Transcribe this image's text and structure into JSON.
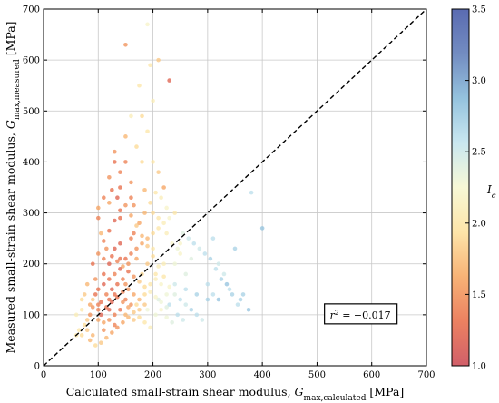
{
  "chart_data": {
    "type": "scatter",
    "xlabel_main": "Calculated small-strain shear modulus, ",
    "xlabel_symbol": "G",
    "xlabel_sub": "max,calculated",
    "xlabel_unit": " [MPa]",
    "ylabel_main": "Measured small-strain shear modulus, ",
    "ylabel_symbol": "G",
    "ylabel_sub": "max,measured",
    "ylabel_unit": " [MPa]",
    "xlim": [
      0,
      700
    ],
    "ylim": [
      0,
      700
    ],
    "xticks": [
      "0",
      "100",
      "200",
      "300",
      "400",
      "500",
      "600",
      "700"
    ],
    "yticks": [
      "0",
      "100",
      "200",
      "300",
      "400",
      "500",
      "600",
      "700"
    ],
    "grid": true,
    "reference_line": {
      "type": "1:1",
      "style": "dashed"
    },
    "annotation": {
      "text_symbol": "r",
      "text_sup": "2",
      "text_rest": " = −0.017",
      "x": 580,
      "y": 100
    },
    "colorbar": {
      "label": "I",
      "label_sub": "c",
      "range": [
        1.0,
        3.5
      ],
      "ticks": [
        "1.0",
        "1.5",
        "2.0",
        "2.5",
        "3.0",
        "3.5"
      ],
      "colors": [
        "#c9434f",
        "#e86b45",
        "#f6a55e",
        "#fde09a",
        "#f6f7cf",
        "#c0e3ee",
        "#82b8d8",
        "#5a78b6",
        "#3d51a4"
      ]
    },
    "points": [
      [
        130,
        140,
        1.3
      ],
      [
        120,
        110,
        1.2
      ],
      [
        100,
        90,
        1.6
      ],
      [
        150,
        160,
        1.5
      ],
      [
        180,
        180,
        1.9
      ],
      [
        160,
        250,
        1.4
      ],
      [
        140,
        240,
        1.2
      ],
      [
        110,
        180,
        1.3
      ],
      [
        90,
        130,
        1.8
      ],
      [
        200,
        230,
        2.0
      ],
      [
        220,
        200,
        2.1
      ],
      [
        240,
        160,
        2.5
      ],
      [
        260,
        150,
        2.6
      ],
      [
        280,
        140,
        2.7
      ],
      [
        300,
        160,
        2.6
      ],
      [
        320,
        200,
        2.5
      ],
      [
        350,
        230,
        2.7
      ],
      [
        380,
        340,
        2.6
      ],
      [
        400,
        270,
        2.8
      ],
      [
        310,
        250,
        2.6
      ],
      [
        330,
        180,
        2.5
      ],
      [
        270,
        210,
        2.4
      ],
      [
        250,
        240,
        2.2
      ],
      [
        230,
        120,
        2.6
      ],
      [
        210,
        130,
        2.4
      ],
      [
        190,
        110,
        2.3
      ],
      [
        170,
        120,
        1.9
      ],
      [
        150,
        100,
        1.7
      ],
      [
        130,
        80,
        1.4
      ],
      [
        110,
        70,
        1.5
      ],
      [
        90,
        60,
        1.7
      ],
      [
        80,
        90,
        1.8
      ],
      [
        70,
        110,
        2.0
      ],
      [
        60,
        100,
        2.1
      ],
      [
        100,
        150,
        1.3
      ],
      [
        120,
        200,
        1.2
      ],
      [
        140,
        290,
        1.3
      ],
      [
        160,
        330,
        1.4
      ],
      [
        150,
        400,
        1.4
      ],
      [
        130,
        400,
        1.3
      ],
      [
        180,
        400,
        1.9
      ],
      [
        200,
        400,
        2.0
      ],
      [
        160,
        490,
        2.1
      ],
      [
        180,
        490,
        1.9
      ],
      [
        150,
        630,
        1.5
      ],
      [
        195,
        590,
        2.0
      ],
      [
        210,
        600,
        1.8
      ],
      [
        230,
        560,
        1.2
      ],
      [
        190,
        670,
        2.2
      ],
      [
        175,
        550,
        2.0
      ],
      [
        200,
        520,
        2.1
      ],
      [
        160,
        360,
        1.5
      ],
      [
        140,
        350,
        1.3
      ],
      [
        120,
        320,
        1.6
      ],
      [
        100,
        290,
        1.4
      ],
      [
        105,
        260,
        1.7
      ],
      [
        115,
        230,
        1.5
      ],
      [
        125,
        215,
        1.3
      ],
      [
        135,
        205,
        1.4
      ],
      [
        145,
        195,
        1.6
      ],
      [
        155,
        185,
        1.3
      ],
      [
        165,
        175,
        1.5
      ],
      [
        175,
        165,
        1.8
      ],
      [
        185,
        155,
        1.9
      ],
      [
        195,
        145,
        2.1
      ],
      [
        205,
        135,
        2.2
      ],
      [
        215,
        125,
        2.3
      ],
      [
        225,
        115,
        2.4
      ],
      [
        100,
        120,
        1.4
      ],
      [
        95,
        140,
        1.3
      ],
      [
        85,
        100,
        1.5
      ],
      [
        75,
        80,
        1.9
      ],
      [
        65,
        70,
        2.0
      ],
      [
        70,
        130,
        1.9
      ],
      [
        80,
        160,
        1.7
      ],
      [
        90,
        200,
        1.3
      ],
      [
        100,
        220,
        1.5
      ],
      [
        110,
        245,
        1.4
      ],
      [
        120,
        265,
        1.3
      ],
      [
        130,
        285,
        1.2
      ],
      [
        140,
        305,
        1.3
      ],
      [
        150,
        315,
        1.5
      ],
      [
        160,
        295,
        1.6
      ],
      [
        170,
        275,
        1.8
      ],
      [
        180,
        255,
        1.7
      ],
      [
        190,
        235,
        1.8
      ],
      [
        200,
        215,
        1.9
      ],
      [
        210,
        195,
        2.1
      ],
      [
        220,
        175,
        2.0
      ],
      [
        230,
        155,
        2.2
      ],
      [
        240,
        140,
        2.4
      ],
      [
        250,
        130,
        2.6
      ],
      [
        260,
        120,
        2.5
      ],
      [
        270,
        110,
        2.7
      ],
      [
        280,
        100,
        2.6
      ],
      [
        290,
        90,
        2.5
      ],
      [
        300,
        130,
        2.7
      ],
      [
        310,
        140,
        2.6
      ],
      [
        320,
        130,
        2.8
      ],
      [
        340,
        150,
        2.6
      ],
      [
        360,
        130,
        2.7
      ],
      [
        240,
        200,
        2.3
      ],
      [
        260,
        180,
        2.4
      ],
      [
        250,
        220,
        2.2
      ],
      [
        105,
        100,
        1.2
      ],
      [
        115,
        115,
        1.3
      ],
      [
        125,
        125,
        1.2
      ],
      [
        135,
        135,
        1.3
      ],
      [
        145,
        145,
        1.4
      ],
      [
        155,
        150,
        1.5
      ],
      [
        165,
        140,
        1.6
      ],
      [
        175,
        130,
        1.7
      ],
      [
        185,
        120,
        1.8
      ],
      [
        110,
        160,
        1.2
      ],
      [
        120,
        170,
        1.3
      ],
      [
        130,
        180,
        1.4
      ],
      [
        140,
        190,
        1.2
      ],
      [
        150,
        210,
        1.3
      ],
      [
        160,
        220,
        1.4
      ],
      [
        170,
        230,
        1.5
      ],
      [
        180,
        240,
        1.6
      ],
      [
        190,
        250,
        1.7
      ],
      [
        200,
        260,
        1.9
      ],
      [
        210,
        270,
        2.0
      ],
      [
        220,
        280,
        2.1
      ],
      [
        230,
        290,
        2.2
      ],
      [
        240,
        300,
        2.0
      ],
      [
        110,
        210,
        1.4
      ],
      [
        95,
        170,
        1.5
      ],
      [
        85,
        120,
        1.6
      ],
      [
        75,
        140,
        1.8
      ],
      [
        140,
        210,
        1.3
      ],
      [
        130,
        230,
        1.2
      ],
      [
        170,
        210,
        1.6
      ],
      [
        190,
        200,
        1.8
      ],
      [
        205,
        180,
        2.0
      ],
      [
        215,
        160,
        2.2
      ],
      [
        225,
        140,
        2.3
      ],
      [
        160,
        120,
        1.5
      ],
      [
        150,
        130,
        1.4
      ],
      [
        140,
        110,
        1.3
      ],
      [
        130,
        100,
        1.4
      ],
      [
        120,
        90,
        1.5
      ],
      [
        110,
        85,
        1.6
      ],
      [
        135,
        160,
        1.3
      ],
      [
        145,
        170,
        1.4
      ],
      [
        155,
        200,
        1.5
      ],
      [
        165,
        260,
        1.4
      ],
      [
        175,
        280,
        1.6
      ],
      [
        185,
        300,
        1.7
      ],
      [
        195,
        320,
        1.9
      ],
      [
        205,
        340,
        2.0
      ],
      [
        215,
        330,
        2.1
      ],
      [
        225,
        310,
        2.2
      ],
      [
        120,
        130,
        1.3
      ],
      [
        125,
        150,
        1.2
      ],
      [
        100,
        110,
        1.4
      ],
      [
        90,
        115,
        1.5
      ],
      [
        105,
        125,
        1.3
      ],
      [
        115,
        140,
        1.4
      ],
      [
        145,
        125,
        1.5
      ],
      [
        155,
        115,
        1.6
      ],
      [
        165,
        105,
        1.8
      ],
      [
        175,
        95,
        1.9
      ],
      [
        185,
        85,
        2.0
      ],
      [
        195,
        75,
        2.1
      ],
      [
        205,
        100,
        2.3
      ],
      [
        215,
        110,
        2.2
      ],
      [
        60,
        60,
        2.0
      ],
      [
        70,
        60,
        1.9
      ],
      [
        80,
        70,
        1.8
      ],
      [
        85,
        50,
        1.7
      ],
      [
        95,
        40,
        1.9
      ],
      [
        105,
        45,
        1.8
      ],
      [
        115,
        55,
        1.7
      ],
      [
        125,
        65,
        1.6
      ],
      [
        135,
        75,
        1.5
      ],
      [
        145,
        85,
        1.6
      ],
      [
        155,
        95,
        1.7
      ],
      [
        165,
        90,
        1.8
      ],
      [
        175,
        110,
        1.8
      ],
      [
        185,
        140,
        1.9
      ],
      [
        195,
        160,
        2.0
      ],
      [
        205,
        170,
        2.1
      ],
      [
        130,
        420,
        1.5
      ],
      [
        150,
        450,
        1.7
      ],
      [
        170,
        430,
        1.9
      ],
      [
        190,
        460,
        2.0
      ],
      [
        210,
        380,
        1.8
      ],
      [
        220,
        350,
        1.6
      ],
      [
        140,
        380,
        1.4
      ],
      [
        120,
        370,
        1.5
      ],
      [
        110,
        330,
        1.4
      ],
      [
        100,
        310,
        1.6
      ],
      [
        125,
        345,
        1.3
      ],
      [
        135,
        330,
        1.2
      ],
      [
        165,
        315,
        1.5
      ],
      [
        185,
        345,
        1.7
      ],
      [
        200,
        300,
        1.9
      ],
      [
        210,
        290,
        2.0
      ],
      [
        225,
        260,
        2.1
      ],
      [
        235,
        240,
        2.2
      ],
      [
        245,
        230,
        2.3
      ],
      [
        255,
        260,
        2.4
      ],
      [
        265,
        250,
        2.5
      ],
      [
        275,
        240,
        2.6
      ],
      [
        285,
        230,
        2.5
      ],
      [
        295,
        220,
        2.6
      ],
      [
        305,
        210,
        2.7
      ],
      [
        315,
        190,
        2.6
      ],
      [
        325,
        170,
        2.7
      ],
      [
        335,
        160,
        2.8
      ],
      [
        345,
        140,
        2.7
      ],
      [
        355,
        120,
        2.6
      ],
      [
        365,
        140,
        2.7
      ],
      [
        375,
        110,
        2.8
      ],
      [
        255,
        90,
        2.5
      ],
      [
        245,
        100,
        2.6
      ],
      [
        235,
        85,
        2.4
      ],
      [
        225,
        95,
        2.3
      ]
    ]
  }
}
